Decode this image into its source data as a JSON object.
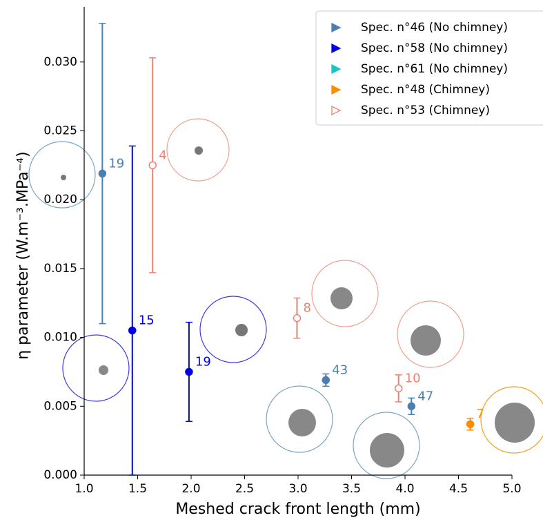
{
  "chart_data": {
    "type": "scatter",
    "x_label": "Meshed crack front length (mm)",
    "y_label": "η parameter (W.m⁻³.MPa⁻⁴)",
    "xlim": [
      1.0,
      5.0
    ],
    "ylim": [
      0,
      0.034
    ],
    "xticks": [
      {
        "value": 1.0,
        "label": "1.0"
      },
      {
        "value": 1.5,
        "label": "1.5"
      },
      {
        "value": 2.0,
        "label": "2.0"
      },
      {
        "value": 2.5,
        "label": "2.5"
      },
      {
        "value": 3.0,
        "label": "3.0"
      },
      {
        "value": 3.5,
        "label": "3.5"
      },
      {
        "value": 4.0,
        "label": "4.0"
      },
      {
        "value": 4.5,
        "label": "4.5"
      },
      {
        "value": 5.0,
        "label": "5.0"
      }
    ],
    "yticks": [
      {
        "value": 0,
        "label": "0.000"
      },
      {
        "value": 0.005,
        "label": "0.005"
      },
      {
        "value": 0.01,
        "label": "0.010"
      },
      {
        "value": 0.015,
        "label": "0.015"
      },
      {
        "value": 0.02,
        "label": "0.020"
      },
      {
        "value": 0.025,
        "label": "0.025"
      },
      {
        "value": 0.03,
        "label": "0.030"
      }
    ],
    "legend_position": "upper right",
    "series": [
      {
        "name": "Spec. n°46 (No chimney)",
        "color": "#4a7fb0",
        "marker": "filled",
        "x": [
          1.17,
          3.26,
          4.06
        ],
        "values": [
          0.0219,
          0.0069,
          0.005
        ],
        "errors": [
          0.0109,
          0.00045,
          0.0006
        ],
        "point_labels": [
          "19",
          "43",
          "47"
        ]
      },
      {
        "name": "Spec. n°58 (No chimney)",
        "color": "#0000e6",
        "marker": "filled",
        "x": [
          1.45,
          1.98
        ],
        "values": [
          0.0105,
          0.0075
        ],
        "errors": [
          0.0134,
          0.0036
        ],
        "point_labels": [
          "15",
          "19"
        ]
      },
      {
        "name": "Spec. n°61 (No chimney)",
        "color": "#17c4c4",
        "marker": "filled",
        "x": [],
        "values": [],
        "errors": [],
        "point_labels": []
      },
      {
        "name": "Spec. n°48 (Chimney)",
        "color": "#ff8c00",
        "marker": "filled",
        "x": [
          4.61
        ],
        "values": [
          0.0037
        ],
        "errors": [
          0.00043
        ],
        "point_labels": [
          "7"
        ]
      },
      {
        "name": "Spec. n°53 (Chimney)",
        "color": "#f08070",
        "marker": "open",
        "x": [
          1.64,
          2.99,
          3.94
        ],
        "values": [
          0.0225,
          0.0114,
          0.0063
        ],
        "errors": [
          0.0078,
          0.00146,
          0.00098
        ],
        "point_labels": [
          "4",
          "8",
          "10"
        ]
      }
    ]
  }
}
